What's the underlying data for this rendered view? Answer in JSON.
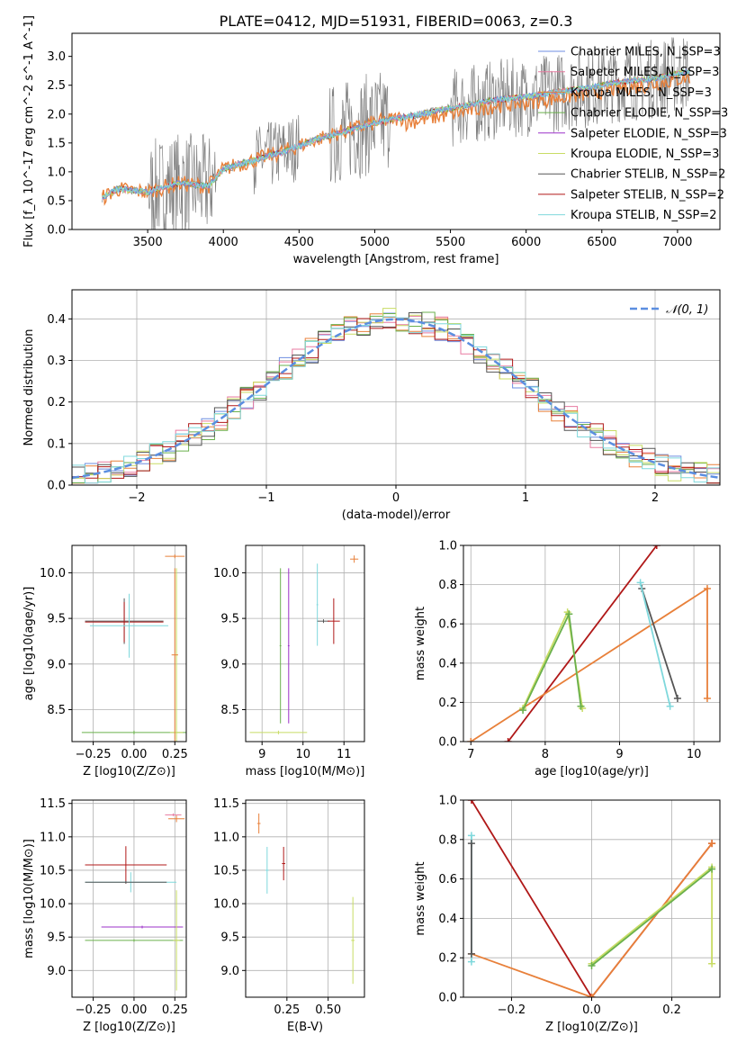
{
  "title": "PLATE=0412, MJD=51931, FIBERID=0063, z=0.3",
  "colors": {
    "chabrier_miles": "#6e8ee0",
    "salpeter_miles": "#e87aa0",
    "kroupa_miles": "#e8803a",
    "chabrier_elodie": "#6ab04c",
    "salpeter_elodie": "#9b30c8",
    "kroupa_elodie": "#c8dc64",
    "chabrier_stelib": "#555555",
    "salpeter_stelib": "#b01818",
    "kroupa_stelib": "#7fd8dc",
    "data": "#808080",
    "gauss": "#5b8ee0"
  },
  "legend": [
    {
      "label": "Chabrier MILES, N_SSP=3",
      "color_key": "chabrier_miles"
    },
    {
      "label": "Salpeter MILES, N_SSP=3",
      "color_key": "salpeter_miles"
    },
    {
      "label": "Kroupa MILES, N_SSP=3",
      "color_key": "kroupa_miles"
    },
    {
      "label": "Chabrier ELODIE, N_SSP=3",
      "color_key": "chabrier_elodie"
    },
    {
      "label": "Salpeter ELODIE, N_SSP=3",
      "color_key": "salpeter_elodie"
    },
    {
      "label": "Kroupa ELODIE, N_SSP=3",
      "color_key": "kroupa_elodie"
    },
    {
      "label": "Chabrier STELIB, N_SSP=2",
      "color_key": "chabrier_stelib"
    },
    {
      "label": "Salpeter STELIB, N_SSP=2",
      "color_key": "salpeter_stelib"
    },
    {
      "label": "Kroupa STELIB, N_SSP=2",
      "color_key": "kroupa_stelib"
    }
  ],
  "chart_data": [
    {
      "id": "spectrum",
      "type": "line",
      "xlabel": "wavelength [Angstrom, rest frame]",
      "ylabel": "Flux [f_λ 10^-17 erg cm^-2 s^-1 A^-1]",
      "xlim": [
        3000,
        7280
      ],
      "ylim": [
        0,
        3.4
      ],
      "xticks": [
        3500,
        4000,
        4500,
        5000,
        5500,
        6000,
        6500,
        7000
      ],
      "yticks": [
        0.0,
        0.5,
        1.0,
        1.5,
        2.0,
        2.5,
        3.0
      ],
      "grid": false,
      "legend_placement": "top-right",
      "model_continuum": [
        [
          3200,
          0.55
        ],
        [
          3300,
          0.7
        ],
        [
          3500,
          0.65
        ],
        [
          3700,
          0.8
        ],
        [
          3900,
          0.75
        ],
        [
          4000,
          1.05
        ],
        [
          4200,
          1.2
        ],
        [
          4400,
          1.35
        ],
        [
          4600,
          1.55
        ],
        [
          4800,
          1.7
        ],
        [
          5000,
          1.85
        ],
        [
          5200,
          1.95
        ],
        [
          5400,
          2.05
        ],
        [
          5600,
          2.15
        ],
        [
          5800,
          2.25
        ],
        [
          6000,
          2.3
        ],
        [
          6200,
          2.38
        ],
        [
          6400,
          2.45
        ],
        [
          6600,
          2.55
        ],
        [
          6800,
          2.6
        ],
        [
          7000,
          2.7
        ],
        [
          7080,
          2.75
        ]
      ]
    },
    {
      "id": "residuals",
      "type": "area",
      "xlabel": "(data-model)/error",
      "ylabel": "Normed distribution",
      "xlim": [
        -2.5,
        2.5
      ],
      "ylim": [
        0,
        0.47
      ],
      "xticks": [
        -2,
        -1,
        0,
        1,
        2
      ],
      "yticks": [
        0.0,
        0.1,
        0.2,
        0.3,
        0.4
      ],
      "grid": true,
      "legend": "𝒩(0, 1)",
      "legend_placement": "top-right",
      "bins": 50,
      "gaussian": {
        "mu": 0,
        "sigma": 1
      }
    },
    {
      "id": "age_vs_Z",
      "type": "scatter",
      "xlabel": "Z [log10(Z/Z⊙)]",
      "ylabel": "age [log10(age/yr)]",
      "xlim": [
        -0.38,
        0.32
      ],
      "ylim": [
        8.15,
        10.3
      ],
      "xticks": [
        -0.25,
        0.0,
        0.25
      ],
      "xticklabels": [
        "−0.25",
        "0.00",
        "0.25"
      ],
      "yticks": [
        8.5,
        9.0,
        9.5,
        10.0
      ],
      "grid": true
    },
    {
      "id": "age_vs_mass",
      "type": "scatter",
      "xlabel": "mass [log10(M/M⊙)]",
      "xlim": [
        8.6,
        11.5
      ],
      "ylim": [
        8.15,
        10.3
      ],
      "xticks": [
        9,
        10,
        11
      ],
      "yticks": [
        8.5,
        9.0,
        9.5,
        10.0
      ],
      "grid": true
    },
    {
      "id": "weight_vs_age",
      "type": "line",
      "xlabel": "age [log10(age/yr)]",
      "ylabel": "mass weight",
      "xlim": [
        6.9,
        10.35
      ],
      "ylim": [
        0,
        1.0
      ],
      "xticks": [
        7,
        8,
        9,
        10
      ],
      "yticks": [
        0.0,
        0.2,
        0.4,
        0.6,
        0.8,
        1.0
      ],
      "grid": true,
      "series": [
        {
          "color_key": "salpeter_stelib",
          "points": [
            [
              7.5,
              0.0
            ],
            [
              9.5,
              1.0
            ]
          ]
        },
        {
          "color_key": "kroupa_miles",
          "points": [
            [
              7.0,
              0.0
            ],
            [
              10.18,
              0.78
            ],
            [
              10.18,
              0.22
            ]
          ]
        },
        {
          "color_key": "kroupa_elodie",
          "points": [
            [
              7.7,
              0.17
            ],
            [
              8.3,
              0.66
            ],
            [
              8.5,
              0.17
            ]
          ]
        },
        {
          "color_key": "chabrier_elodie",
          "points": [
            [
              7.7,
              0.16
            ],
            [
              8.32,
              0.65
            ],
            [
              8.48,
              0.18
            ]
          ]
        },
        {
          "color_key": "chabrier_stelib",
          "points": [
            [
              9.3,
              0.78
            ],
            [
              9.78,
              0.22
            ]
          ]
        },
        {
          "color_key": "kroupa_stelib",
          "points": [
            [
              9.28,
              0.81
            ],
            [
              9.68,
              0.18
            ]
          ]
        }
      ]
    },
    {
      "id": "mass_vs_Z",
      "type": "scatter",
      "xlabel": "Z [log10(Z/Z⊙)]",
      "ylabel": "mass [log10(M/M⊙)]",
      "xlim": [
        -0.38,
        0.32
      ],
      "ylim": [
        8.6,
        11.55
      ],
      "xticks": [
        -0.25,
        0.0,
        0.25
      ],
      "xticklabels": [
        "−0.25",
        "0.00",
        "0.25"
      ],
      "yticks": [
        9.0,
        9.5,
        10.0,
        10.5,
        11.0,
        11.5
      ],
      "grid": true
    },
    {
      "id": "mass_vs_ebv",
      "type": "scatter",
      "xlabel": "E(B-V)",
      "xlim": [
        0.0,
        0.72
      ],
      "ylim": [
        8.6,
        11.55
      ],
      "xticks": [
        0.25,
        0.5
      ],
      "xticklabels": [
        "0.25",
        "0.50"
      ],
      "yticks": [
        9.0,
        9.5,
        10.0,
        10.5,
        11.0,
        11.5
      ],
      "grid": true
    },
    {
      "id": "weight_vs_Z",
      "type": "line",
      "xlabel": "Z [log10(Z/Z⊙)]",
      "ylabel": "mass weight",
      "xlim": [
        -0.32,
        0.32
      ],
      "ylim": [
        0,
        1.0
      ],
      "xticks": [
        -0.2,
        0.0,
        0.2
      ],
      "xticklabels": [
        "−0.2",
        "0.0",
        "0.2"
      ],
      "yticks": [
        0.0,
        0.2,
        0.4,
        0.6,
        0.8,
        1.0
      ],
      "grid": true,
      "series": [
        {
          "color_key": "salpeter_stelib",
          "points": [
            [
              -0.3,
              1.0
            ],
            [
              0.0,
              0.0
            ],
            [
              0.3,
              0.78
            ]
          ]
        },
        {
          "color_key": "kroupa_miles",
          "points": [
            [
              -0.3,
              0.22
            ],
            [
              0.0,
              0.0
            ],
            [
              0.3,
              0.78
            ]
          ]
        },
        {
          "color_key": "kroupa_elodie",
          "points": [
            [
              0.0,
              0.17
            ],
            [
              0.3,
              0.66
            ],
            [
              0.3,
              0.17
            ]
          ]
        },
        {
          "color_key": "chabrier_elodie",
          "points": [
            [
              0.0,
              0.16
            ],
            [
              0.3,
              0.65
            ]
          ]
        },
        {
          "color_key": "kroupa_stelib",
          "points": [
            [
              -0.3,
              0.82
            ],
            [
              -0.3,
              0.18
            ]
          ]
        },
        {
          "color_key": "chabrier_stelib",
          "points": [
            [
              -0.3,
              0.78
            ],
            [
              -0.3,
              0.22
            ]
          ]
        }
      ]
    }
  ]
}
